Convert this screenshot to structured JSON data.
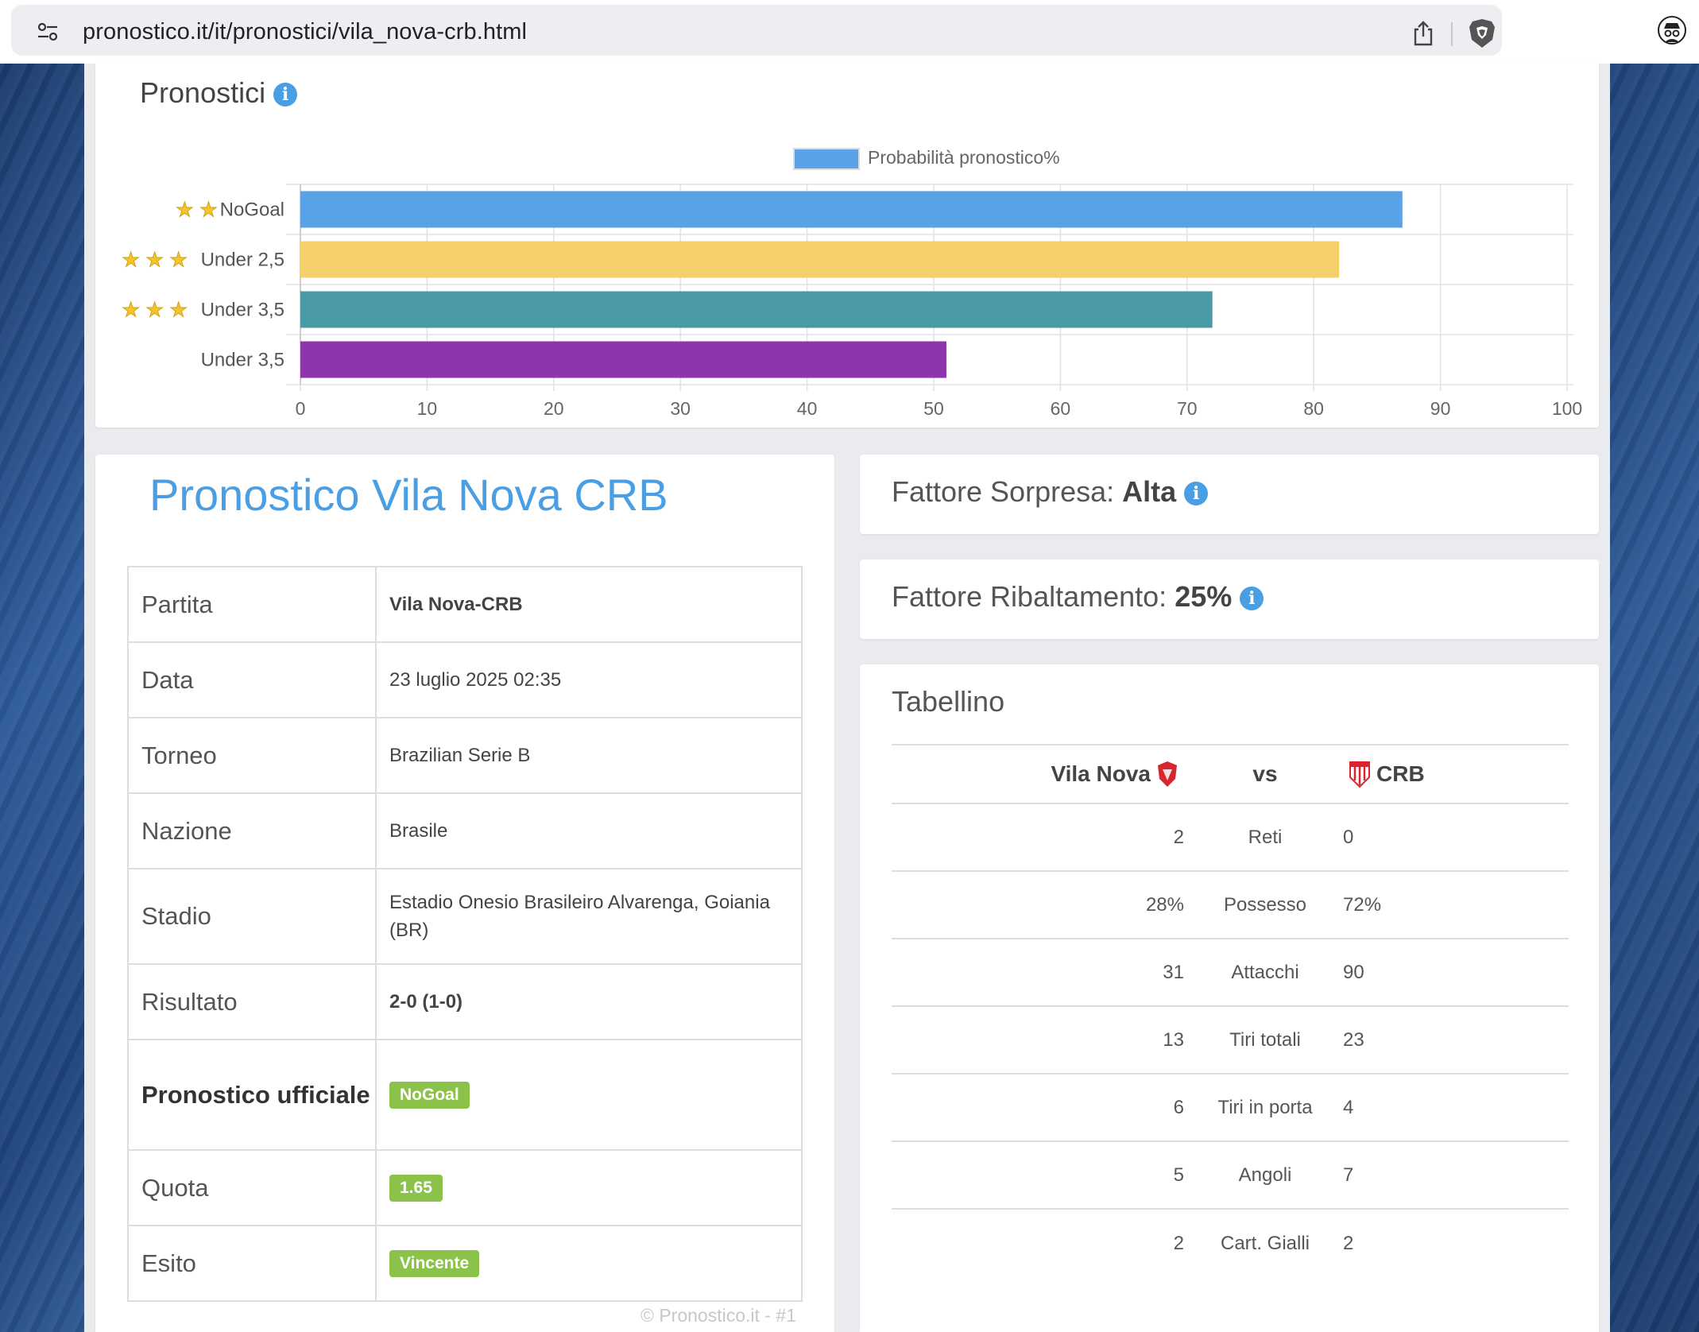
{
  "browser": {
    "url": "pronostico.it/it/pronostici/vila_nova-crb.html"
  },
  "pronostici_panel": {
    "title": "Pronostici"
  },
  "chart_data": {
    "type": "bar",
    "orientation": "horizontal",
    "legend_label": "Probabilità pronostico%",
    "legend_position": "top-center",
    "categories": [
      {
        "label": "NoGoal",
        "stars": 2,
        "value": 87,
        "color": "#5aa2e6"
      },
      {
        "label": "Under 2,5",
        "stars": 3,
        "value": 82,
        "color": "#f5cf6a"
      },
      {
        "label": "Under 3,5",
        "stars": 3,
        "value": 72,
        "color": "#4a9aa6"
      },
      {
        "label": "Under 3,5",
        "stars": 0,
        "value": 51,
        "color": "#8c35ad"
      }
    ],
    "xlim": [
      0,
      100
    ],
    "xticks": [
      "0",
      "10",
      "20",
      "30",
      "40",
      "50",
      "60",
      "70",
      "80",
      "90",
      "100"
    ],
    "grid": true
  },
  "match": {
    "title": "Pronostico Vila Nova CRB",
    "rows": [
      {
        "key": "Partita",
        "value": "Vila Nova-CRB"
      },
      {
        "key": "Data",
        "value": "23 luglio 2025 02:35"
      },
      {
        "key": "Torneo",
        "value": "Brazilian Serie B"
      },
      {
        "key": "Nazione",
        "value": "Brasile"
      },
      {
        "key": "Stadio",
        "value": "Estadio Onesio Brasileiro Alvarenga, Goiania (BR)"
      },
      {
        "key": "Risultato",
        "value": "2-0 (1-0)"
      },
      {
        "key": "Pronostico ufficiale",
        "value": "NoGoal"
      },
      {
        "key": "Quota",
        "value": "1.65"
      },
      {
        "key": "Esito",
        "value": "Vincente"
      }
    ],
    "watermark": "© Pronostico.it - #1"
  },
  "fattore_sorpresa": {
    "label": "Fattore Sorpresa:",
    "value": "Alta"
  },
  "fattore_ribaltamento": {
    "label": "Fattore Ribaltamento:",
    "value": "25%"
  },
  "tabellino": {
    "title": "Tabellino",
    "home": "Vila Nova",
    "vs": "vs",
    "away": "CRB",
    "rows": [
      {
        "home": "2",
        "stat": "Reti",
        "away": "0"
      },
      {
        "home": "28%",
        "stat": "Possesso",
        "away": "72%"
      },
      {
        "home": "31",
        "stat": "Attacchi",
        "away": "90"
      },
      {
        "home": "13",
        "stat": "Tiri totali",
        "away": "23"
      },
      {
        "home": "6",
        "stat": "Tiri in porta",
        "away": "4"
      },
      {
        "home": "5",
        "stat": "Angoli",
        "away": "7"
      },
      {
        "home": "2",
        "stat": "Cart. Gialli",
        "away": "2"
      }
    ]
  },
  "colors": {
    "accent": "#4a9ee3",
    "badge_green": "#8bc34a"
  }
}
